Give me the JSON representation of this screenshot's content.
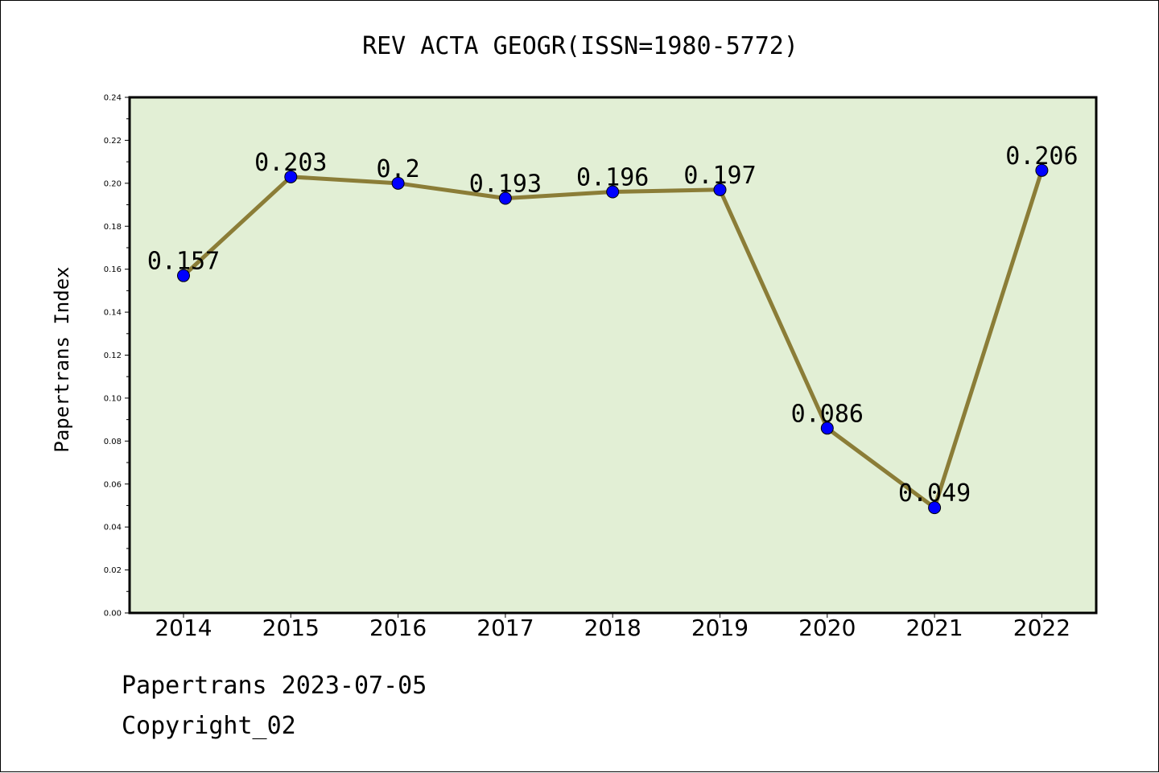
{
  "footer": {
    "line1": "Papertrans 2023-07-05",
    "line2": "Copyright_02"
  },
  "chart_data": {
    "type": "line",
    "title": "REV ACTA GEOGR(ISSN=1980-5772)",
    "xlabel": "",
    "ylabel": "Papertrans Index",
    "categories": [
      "2014",
      "2015",
      "2016",
      "2017",
      "2018",
      "2019",
      "2020",
      "2021",
      "2022"
    ],
    "series": [
      {
        "values": [
          0.157,
          0.203,
          0.2,
          0.193,
          0.196,
          0.197,
          0.086,
          0.049,
          0.206
        ],
        "labels": [
          "0.157",
          "0.203",
          "0.2",
          "0.193",
          "0.196",
          "0.197",
          "0.086",
          "0.049",
          "0.206"
        ]
      }
    ],
    "ylim": [
      0,
      0.24
    ],
    "yticks": [
      "0.00",
      "0.02",
      "0.04",
      "0.06",
      "0.08",
      "0.10",
      "0.12",
      "0.14",
      "0.16",
      "0.18",
      "0.20",
      "0.22",
      "0.24"
    ],
    "grid": false,
    "colors": {
      "plot_background": "#e2efd5",
      "line": "#8b7d37",
      "marker": "#0000ff"
    }
  }
}
